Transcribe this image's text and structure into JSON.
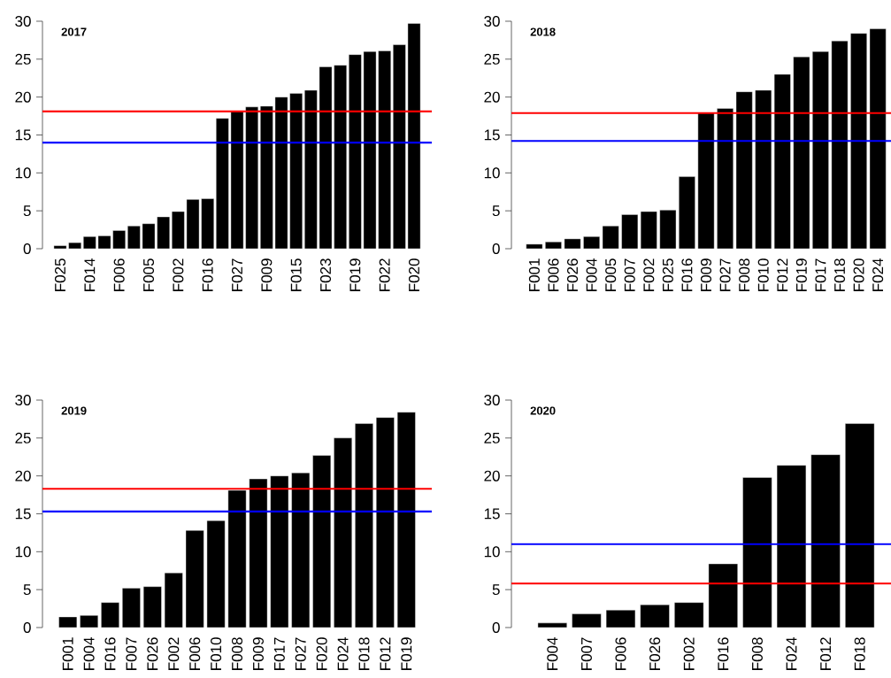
{
  "chart_data": [
    {
      "type": "bar",
      "title": "2017",
      "color": "#000000",
      "ylim": [
        0,
        30
      ],
      "yticks": [
        0,
        5,
        10,
        15,
        20,
        25,
        30
      ],
      "categories": [
        "F025",
        null,
        "F014",
        null,
        "F006",
        null,
        "F005",
        null,
        "F002",
        null,
        "F016",
        null,
        "F027",
        null,
        "F009",
        null,
        "F015",
        null,
        "F023",
        null,
        "F019",
        null,
        "F022",
        null,
        "F020"
      ],
      "values": [
        0.4,
        0.8,
        1.6,
        1.7,
        2.4,
        3.0,
        3.3,
        4.2,
        4.9,
        6.5,
        6.6,
        17.2,
        18.2,
        18.7,
        18.8,
        20.0,
        20.5,
        20.9,
        24.0,
        24.2,
        25.6,
        26.0,
        26.1,
        26.9,
        29.7
      ],
      "ref_lines": [
        {
          "axis": "y",
          "value": 18.1,
          "color": "#ff0000"
        },
        {
          "axis": "y",
          "value": 14.0,
          "color": "#0000ff"
        }
      ]
    },
    {
      "type": "bar",
      "title": "2018",
      "color": "#000000",
      "ylim": [
        0,
        30
      ],
      "yticks": [
        0,
        5,
        10,
        15,
        20,
        25,
        30
      ],
      "categories": [
        "F001",
        "F006",
        "F026",
        "F004",
        "F005",
        "F007",
        "F002",
        "F025",
        "F016",
        "F009",
        "F027",
        "F008",
        "F010",
        "F012",
        "F019",
        "F017",
        "F018",
        "F020",
        "F024"
      ],
      "values": [
        0.6,
        0.9,
        1.3,
        1.6,
        3.0,
        4.5,
        4.9,
        5.1,
        9.5,
        17.9,
        18.5,
        20.7,
        20.9,
        23.0,
        25.3,
        26.0,
        27.4,
        28.4,
        29.0
      ],
      "ref_lines": [
        {
          "axis": "y",
          "value": 17.9,
          "color": "#ff0000"
        },
        {
          "axis": "y",
          "value": 14.2,
          "color": "#0000ff"
        }
      ]
    },
    {
      "type": "bar",
      "title": "2019",
      "color": "#000000",
      "ylim": [
        0,
        30
      ],
      "yticks": [
        0,
        5,
        10,
        15,
        20,
        25,
        30
      ],
      "categories": [
        "F001",
        "F004",
        "F016",
        "F007",
        "F026",
        "F002",
        "F006",
        "F010",
        "F008",
        "F009",
        "F017",
        "F027",
        "F020",
        "F024",
        "F018",
        "F012",
        "F019"
      ],
      "values": [
        1.4,
        1.6,
        3.3,
        5.2,
        5.4,
        7.2,
        12.8,
        14.1,
        18.1,
        19.6,
        20.0,
        20.4,
        22.7,
        25.0,
        26.9,
        27.7,
        28.4
      ],
      "ref_lines": [
        {
          "axis": "y",
          "value": 18.3,
          "color": "#ff0000"
        },
        {
          "axis": "y",
          "value": 15.3,
          "color": "#0000ff"
        }
      ]
    },
    {
      "type": "bar",
      "title": "2020",
      "color": "#000000",
      "ylim": [
        0,
        30
      ],
      "yticks": [
        0,
        5,
        10,
        15,
        20,
        25,
        30
      ],
      "categories": [
        "F004",
        "F007",
        "F006",
        "F026",
        "F002",
        "F016",
        "F008",
        "F024",
        "F012",
        "F018"
      ],
      "values": [
        0.6,
        1.8,
        2.3,
        3.0,
        3.3,
        8.4,
        19.8,
        21.4,
        22.8,
        26.9
      ],
      "ref_lines": [
        {
          "axis": "y",
          "value": 11.0,
          "color": "#0000ff"
        },
        {
          "axis": "y",
          "value": 5.8,
          "color": "#ff0000"
        }
      ]
    }
  ]
}
